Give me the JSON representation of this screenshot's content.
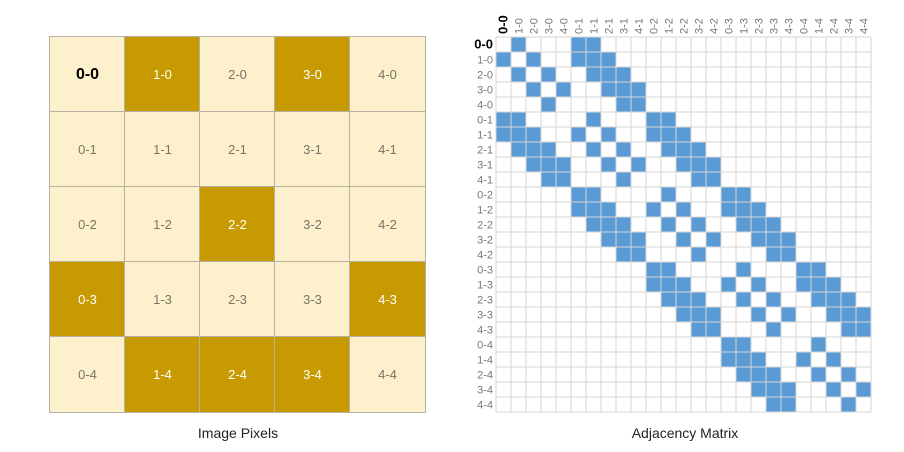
{
  "grid": {
    "size": 5,
    "selected": "0-0",
    "on_pixels": [
      "1-0",
      "3-0",
      "2-2",
      "0-3",
      "4-3",
      "1-4",
      "2-4",
      "3-4"
    ],
    "colors": {
      "on": "#c69a00",
      "off": "#fdf0cc",
      "border": "#b8b0a0",
      "edge": "#5b9bd5",
      "matrix_grid": "#d6d6d6"
    }
  },
  "captions": {
    "image": "Image Pixels",
    "matrix": "Adjacency Matrix"
  }
}
